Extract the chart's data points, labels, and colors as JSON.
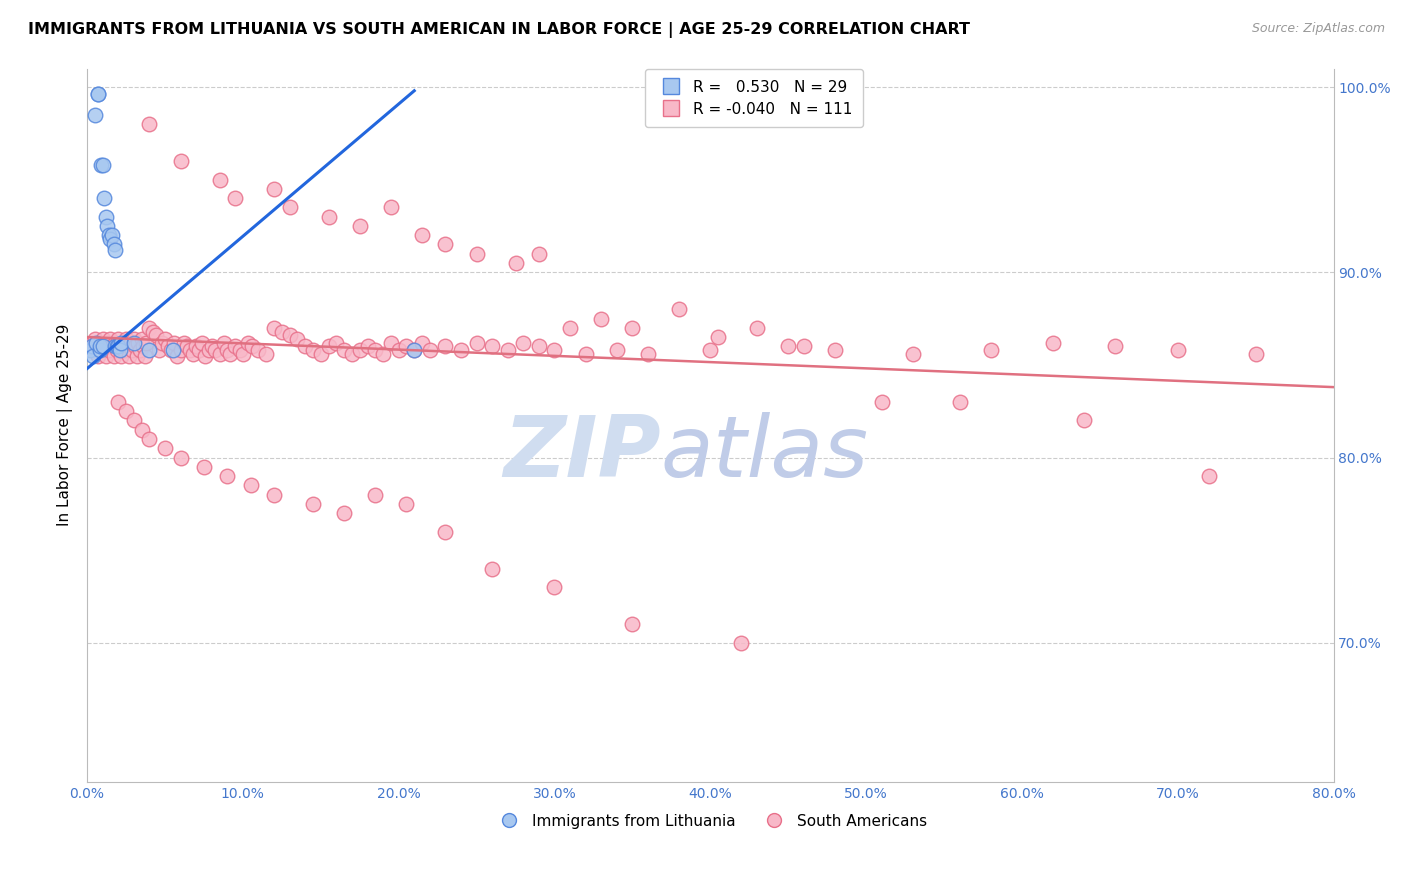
{
  "title": "IMMIGRANTS FROM LITHUANIA VS SOUTH AMERICAN IN LABOR FORCE | AGE 25-29 CORRELATION CHART",
  "source": "Source: ZipAtlas.com",
  "ylabel": "In Labor Force | Age 25-29",
  "x_min": 0.0,
  "x_max": 0.8,
  "y_min": 0.625,
  "y_max": 1.01,
  "right_yticks": [
    0.7,
    0.8,
    0.9,
    1.0
  ],
  "bottom_xticks": [
    0.0,
    0.1,
    0.2,
    0.3,
    0.4,
    0.5,
    0.6,
    0.7,
    0.8
  ],
  "blue_R": 0.53,
  "blue_N": 29,
  "pink_R": -0.04,
  "pink_N": 111,
  "blue_color": "#a8c8f0",
  "pink_color": "#f8b8c8",
  "blue_edge_color": "#5588dd",
  "pink_edge_color": "#e8708a",
  "blue_line_color": "#2266dd",
  "pink_line_color": "#e07080",
  "watermark_zip": "ZIP",
  "watermark_atlas": "atlas",
  "watermark_color_zip": "#d0ddf0",
  "watermark_color_atlas": "#c0cce8",
  "legend_label_blue": "Immigrants from Lithuania",
  "legend_label_pink": "South Americans",
  "blue_scatter_x": [
    0.002,
    0.003,
    0.004,
    0.005,
    0.006,
    0.007,
    0.007,
    0.008,
    0.008,
    0.009,
    0.01,
    0.01,
    0.011,
    0.012,
    0.013,
    0.014,
    0.015,
    0.016,
    0.017,
    0.018,
    0.018,
    0.019,
    0.02,
    0.021,
    0.022,
    0.03,
    0.04,
    0.055,
    0.21
  ],
  "blue_scatter_y": [
    0.858,
    0.86,
    0.855,
    0.985,
    0.862,
    0.996,
    0.996,
    0.858,
    0.86,
    0.958,
    0.86,
    0.958,
    0.94,
    0.93,
    0.925,
    0.92,
    0.918,
    0.92,
    0.915,
    0.912,
    0.86,
    0.86,
    0.86,
    0.858,
    0.862,
    0.862,
    0.858,
    0.858,
    0.858
  ],
  "pink_scatter_x": [
    0.002,
    0.003,
    0.004,
    0.005,
    0.006,
    0.007,
    0.008,
    0.009,
    0.01,
    0.011,
    0.012,
    0.013,
    0.014,
    0.015,
    0.016,
    0.017,
    0.018,
    0.019,
    0.02,
    0.021,
    0.022,
    0.023,
    0.024,
    0.025,
    0.026,
    0.027,
    0.028,
    0.029,
    0.03,
    0.031,
    0.032,
    0.033,
    0.034,
    0.035,
    0.036,
    0.037,
    0.038,
    0.04,
    0.042,
    0.044,
    0.046,
    0.048,
    0.05,
    0.052,
    0.054,
    0.056,
    0.058,
    0.06,
    0.062,
    0.064,
    0.066,
    0.068,
    0.07,
    0.072,
    0.074,
    0.076,
    0.078,
    0.08,
    0.082,
    0.085,
    0.088,
    0.09,
    0.092,
    0.095,
    0.098,
    0.1,
    0.103,
    0.106,
    0.11,
    0.115,
    0.12,
    0.125,
    0.13,
    0.135,
    0.14,
    0.145,
    0.15,
    0.155,
    0.16,
    0.165,
    0.17,
    0.175,
    0.18,
    0.185,
    0.19,
    0.195,
    0.2,
    0.205,
    0.21,
    0.215,
    0.22,
    0.23,
    0.24,
    0.25,
    0.26,
    0.27,
    0.28,
    0.29,
    0.3,
    0.32,
    0.34,
    0.36,
    0.4,
    0.45,
    0.48,
    0.53,
    0.58,
    0.62,
    0.66,
    0.7,
    0.75
  ],
  "pink_scatter_y": [
    0.86,
    0.862,
    0.858,
    0.864,
    0.86,
    0.855,
    0.862,
    0.858,
    0.864,
    0.86,
    0.855,
    0.862,
    0.858,
    0.864,
    0.86,
    0.855,
    0.862,
    0.858,
    0.864,
    0.86,
    0.855,
    0.862,
    0.858,
    0.864,
    0.86,
    0.855,
    0.862,
    0.858,
    0.864,
    0.86,
    0.855,
    0.862,
    0.858,
    0.864,
    0.86,
    0.855,
    0.862,
    0.87,
    0.868,
    0.866,
    0.858,
    0.862,
    0.864,
    0.86,
    0.858,
    0.862,
    0.855,
    0.858,
    0.862,
    0.86,
    0.858,
    0.856,
    0.86,
    0.858,
    0.862,
    0.855,
    0.858,
    0.86,
    0.858,
    0.856,
    0.862,
    0.858,
    0.856,
    0.86,
    0.858,
    0.856,
    0.862,
    0.86,
    0.858,
    0.856,
    0.87,
    0.868,
    0.866,
    0.864,
    0.86,
    0.858,
    0.856,
    0.86,
    0.862,
    0.858,
    0.856,
    0.858,
    0.86,
    0.858,
    0.856,
    0.862,
    0.858,
    0.86,
    0.858,
    0.862,
    0.858,
    0.86,
    0.858,
    0.862,
    0.86,
    0.858,
    0.862,
    0.86,
    0.858,
    0.856,
    0.858,
    0.856,
    0.858,
    0.86,
    0.858,
    0.856,
    0.858,
    0.862,
    0.86,
    0.858,
    0.856
  ],
  "pink_outliers_x": [
    0.04,
    0.06,
    0.085,
    0.095,
    0.12,
    0.13,
    0.155,
    0.175,
    0.195,
    0.215,
    0.23,
    0.25,
    0.275,
    0.29,
    0.31,
    0.33,
    0.35,
    0.38,
    0.405,
    0.43,
    0.46,
    0.51,
    0.56,
    0.64,
    0.72
  ],
  "pink_outliers_y": [
    0.98,
    0.96,
    0.95,
    0.94,
    0.945,
    0.935,
    0.93,
    0.925,
    0.935,
    0.92,
    0.915,
    0.91,
    0.905,
    0.91,
    0.87,
    0.875,
    0.87,
    0.88,
    0.865,
    0.87,
    0.86,
    0.83,
    0.83,
    0.82,
    0.79
  ],
  "pink_low_x": [
    0.02,
    0.025,
    0.03,
    0.035,
    0.04,
    0.05,
    0.06,
    0.075,
    0.09,
    0.105,
    0.12,
    0.145,
    0.165,
    0.185,
    0.205,
    0.23,
    0.26,
    0.3,
    0.35,
    0.42
  ],
  "pink_low_y": [
    0.83,
    0.825,
    0.82,
    0.815,
    0.81,
    0.805,
    0.8,
    0.795,
    0.79,
    0.785,
    0.78,
    0.775,
    0.77,
    0.78,
    0.775,
    0.76,
    0.74,
    0.73,
    0.71,
    0.7
  ],
  "blue_trend_x": [
    0.0,
    0.21
  ],
  "blue_trend_y": [
    0.848,
    0.998
  ],
  "pink_trend_x": [
    0.0,
    0.8
  ],
  "pink_trend_y": [
    0.865,
    0.838
  ]
}
